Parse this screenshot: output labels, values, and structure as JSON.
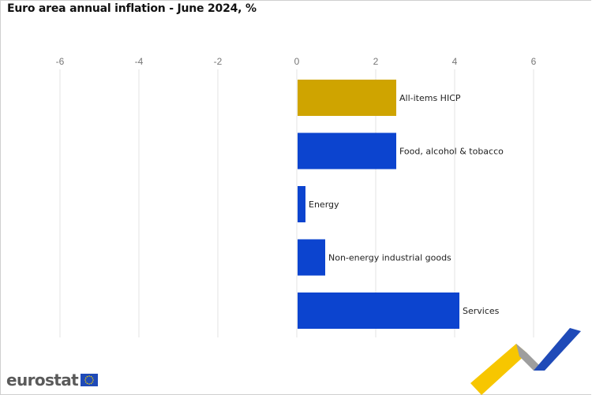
{
  "chart_data": {
    "type": "bar",
    "orientation": "horizontal",
    "title": "Euro area annual inflation - June 2024, %",
    "categories": [
      "All-items HICP",
      "Food, alcohol & tobacco",
      "Energy",
      "Non-energy industrial goods",
      "Services"
    ],
    "values": [
      2.5,
      2.5,
      0.2,
      0.7,
      4.1
    ],
    "bar_colors": [
      "#cfa400",
      "#0c44cf",
      "#0c44cf",
      "#0c44cf",
      "#0c44cf"
    ],
    "xlim": [
      -6,
      6
    ],
    "xticks": [
      "-6",
      "-4",
      "-2",
      "0",
      "2",
      "4",
      "6"
    ],
    "grid": true,
    "axis_position": "top",
    "data_labels": "category name beside bar"
  },
  "branding": {
    "logo_text": "eurostat",
    "flag_color": "#1f4ab8",
    "star_color": "#f6d600",
    "deco_colors": [
      "#f7c600",
      "#9e9e9e",
      "#1f4ab8"
    ]
  }
}
